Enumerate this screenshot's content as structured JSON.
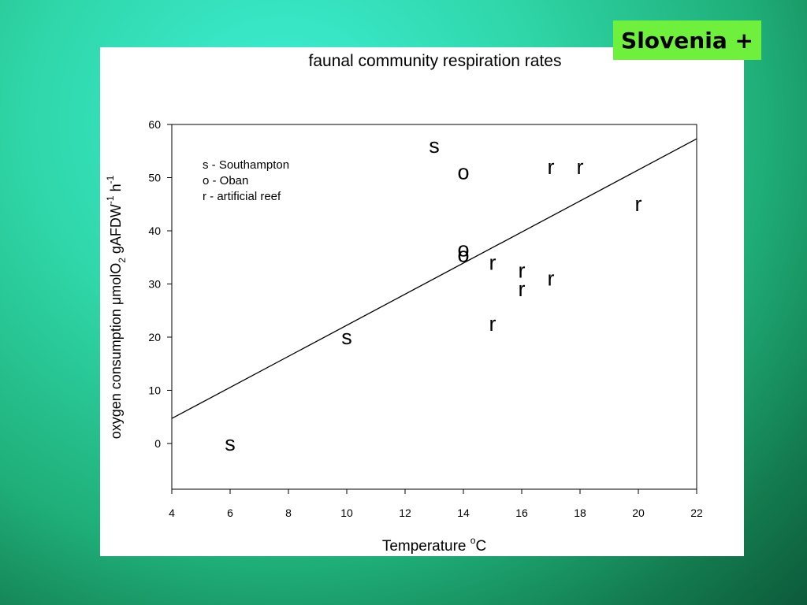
{
  "badge": "Slovenia +",
  "chart_data": {
    "type": "scatter",
    "title": "faunal community respiration rates",
    "x_label_parts": [
      "Temperature ",
      "o",
      "C"
    ],
    "y_label_parts": [
      "oxygen consumption μmolO",
      "2",
      " gAFDW",
      "-1",
      " h",
      "-1"
    ],
    "xlim": [
      4,
      22
    ],
    "xticks": [
      4,
      6,
      8,
      10,
      12,
      14,
      16,
      18,
      20,
      22
    ],
    "ylim": [
      -8.6,
      60
    ],
    "yticks": [
      0,
      10,
      20,
      30,
      40,
      50,
      60
    ],
    "series": [
      {
        "name": "s - Southampton",
        "marker": "s",
        "color": "#000000",
        "x": [
          13,
          10,
          6
        ],
        "values": [
          56,
          20,
          0
        ]
      },
      {
        "name": "o - Oban",
        "marker": "o",
        "color": "#000000",
        "x": [
          14,
          14,
          14
        ],
        "values": [
          51,
          36.5,
          35.5
        ]
      },
      {
        "name": "r - artificial reef",
        "marker": "r",
        "color": "#000000",
        "x": [
          17,
          18,
          20,
          15,
          16,
          17,
          16,
          15
        ],
        "values": [
          52,
          52,
          45,
          34,
          32.5,
          31,
          29,
          22.5
        ]
      }
    ],
    "trendline": {
      "x": [
        4,
        22
      ],
      "values": [
        4.7,
        57.3
      ],
      "color": "#000000"
    }
  }
}
